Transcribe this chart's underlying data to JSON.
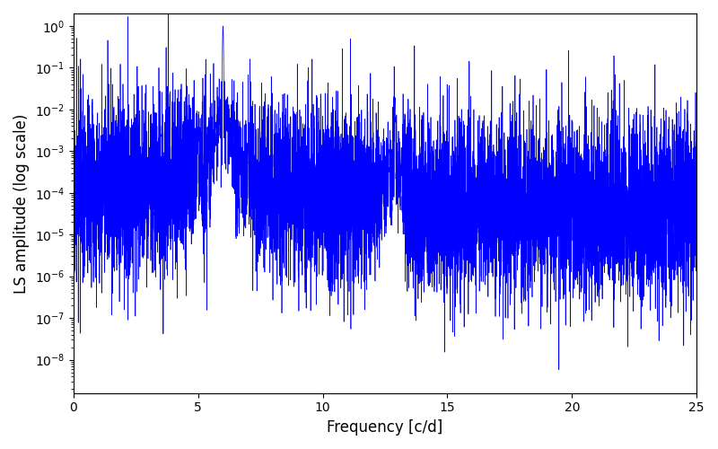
{
  "title": "",
  "xlabel": "Frequency [c/d]",
  "ylabel": "LS amplitude (log scale)",
  "xlim": [
    0,
    25
  ],
  "ylim_log_min": -8.8,
  "ylim_log_max": 0.3,
  "line_color": "#0000ff",
  "background_color": "#ffffff",
  "figsize": [
    8.0,
    5.0
  ],
  "dpi": 100,
  "peak1_freq": 6.0,
  "peak1_amp": 1.0,
  "peak2_freq": 12.9,
  "peak2_amp": 0.018,
  "noise_base": 5e-05,
  "n_points": 8000,
  "freq_min": 0.0,
  "freq_max": 25.0,
  "random_seed": 17
}
